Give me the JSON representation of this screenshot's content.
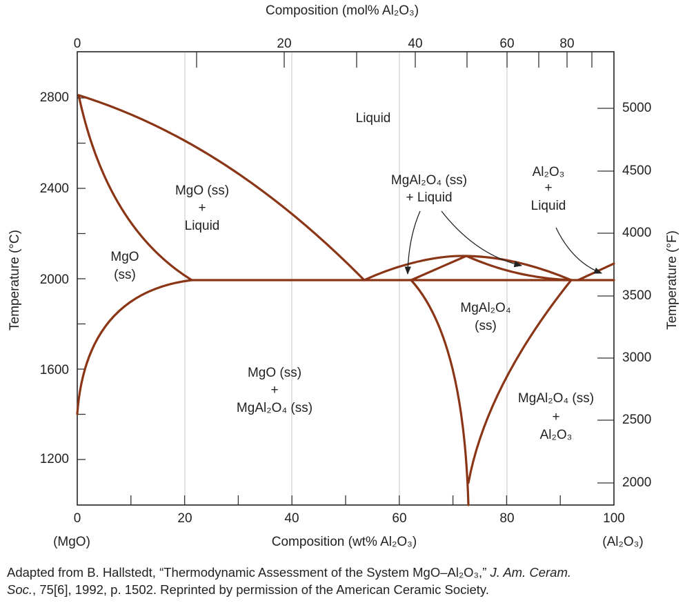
{
  "top_axis": {
    "title": "Composition (mol% Al₂O₃)",
    "ticks": [
      "0",
      "20",
      "40",
      "60",
      "80"
    ]
  },
  "bottom_axis": {
    "title": "Composition (wt% Al₂O₃)",
    "ticks": [
      "0",
      "20",
      "40",
      "60",
      "80",
      "100"
    ],
    "left_end": "(MgO)",
    "right_end": "(Al₂O₃)"
  },
  "left_axis": {
    "title": "Temperature (°C)",
    "ticks": [
      "2800",
      "2400",
      "2000",
      "1600",
      "1200"
    ]
  },
  "right_axis": {
    "title": "Temperature (°F)",
    "ticks": [
      "5000",
      "4500",
      "4000",
      "3500",
      "3000",
      "2500",
      "2000"
    ]
  },
  "regions": [
    {
      "lines": [
        "Liquid"
      ]
    },
    {
      "lines": [
        "MgO (ss)",
        "+",
        "Liquid"
      ]
    },
    {
      "lines": [
        "MgO",
        "(ss)"
      ]
    },
    {
      "lines": [
        "MgAl₂O₄ (ss)",
        "+ Liquid"
      ]
    },
    {
      "lines": [
        "Al₂O₃",
        "+",
        "Liquid"
      ]
    },
    {
      "lines": [
        "MgAl₂O₄",
        "(ss)"
      ]
    },
    {
      "lines": [
        "MgO (ss)",
        "+",
        "MgAl₂O₄ (ss)"
      ]
    },
    {
      "lines": [
        "MgAl₂O₄ (ss)",
        "+",
        "Al₂O₃"
      ]
    }
  ],
  "caption": {
    "line1": "Adapted from B. Hallstedt, “Thermodynamic Assessment of the System MgO–Al₂O₃,” ",
    "line1_italic": "J. Am. Ceram.",
    "line2_italic": "Soc.",
    "line2": ", 75[6], 1992, p. 1502. Reprinted by permission of the American Ceramic Society."
  }
}
